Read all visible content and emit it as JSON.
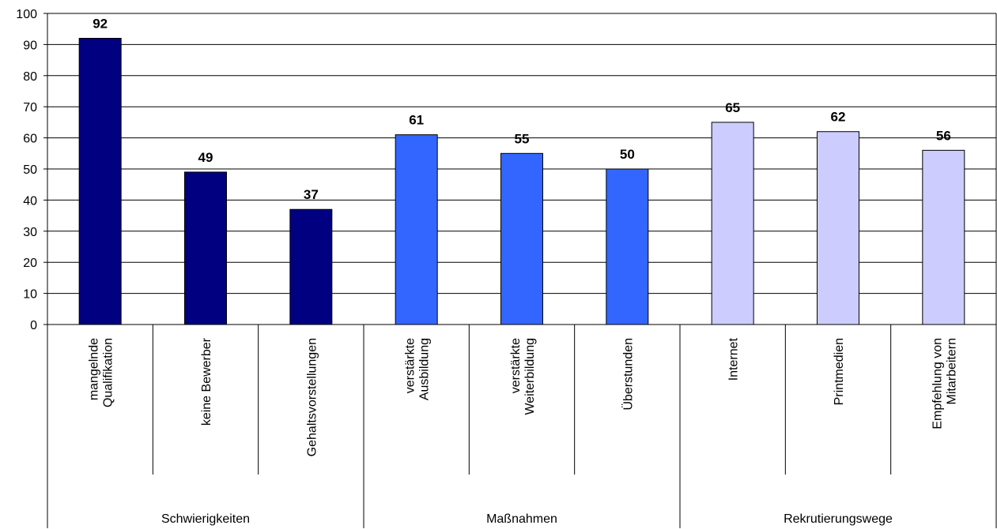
{
  "chart_data": {
    "type": "bar",
    "title": "",
    "xlabel": "",
    "ylabel": "",
    "ylim": [
      0,
      100
    ],
    "yticks": [
      0,
      10,
      20,
      30,
      40,
      50,
      60,
      70,
      80,
      90,
      100
    ],
    "grid": true,
    "legend": "none",
    "data_labels": true,
    "groups": [
      {
        "name": "Schwierigkeiten",
        "color": "#000080",
        "categories": [
          {
            "lines": [
              "mangelnde",
              "Qualifikation"
            ],
            "value": 92
          },
          {
            "lines": [
              "keine Bewerber"
            ],
            "value": 49
          },
          {
            "lines": [
              "Gehaltsvorstellungen"
            ],
            "value": 37
          }
        ]
      },
      {
        "name": "Maßnahmen",
        "color": "#3366ff",
        "categories": [
          {
            "lines": [
              "verstärkte",
              "Ausbildung"
            ],
            "value": 61
          },
          {
            "lines": [
              "verstärkte",
              "Weiterbildung"
            ],
            "value": 55
          },
          {
            "lines": [
              "Überstunden"
            ],
            "value": 50
          }
        ]
      },
      {
        "name": "Rekrutierungswege",
        "color": "#ccccff",
        "categories": [
          {
            "lines": [
              "Internet"
            ],
            "value": 65
          },
          {
            "lines": [
              "Printmedien"
            ],
            "value": 62
          },
          {
            "lines": [
              "Empfehlung von",
              "Mitarbeitern"
            ],
            "value": 56
          }
        ]
      }
    ]
  }
}
